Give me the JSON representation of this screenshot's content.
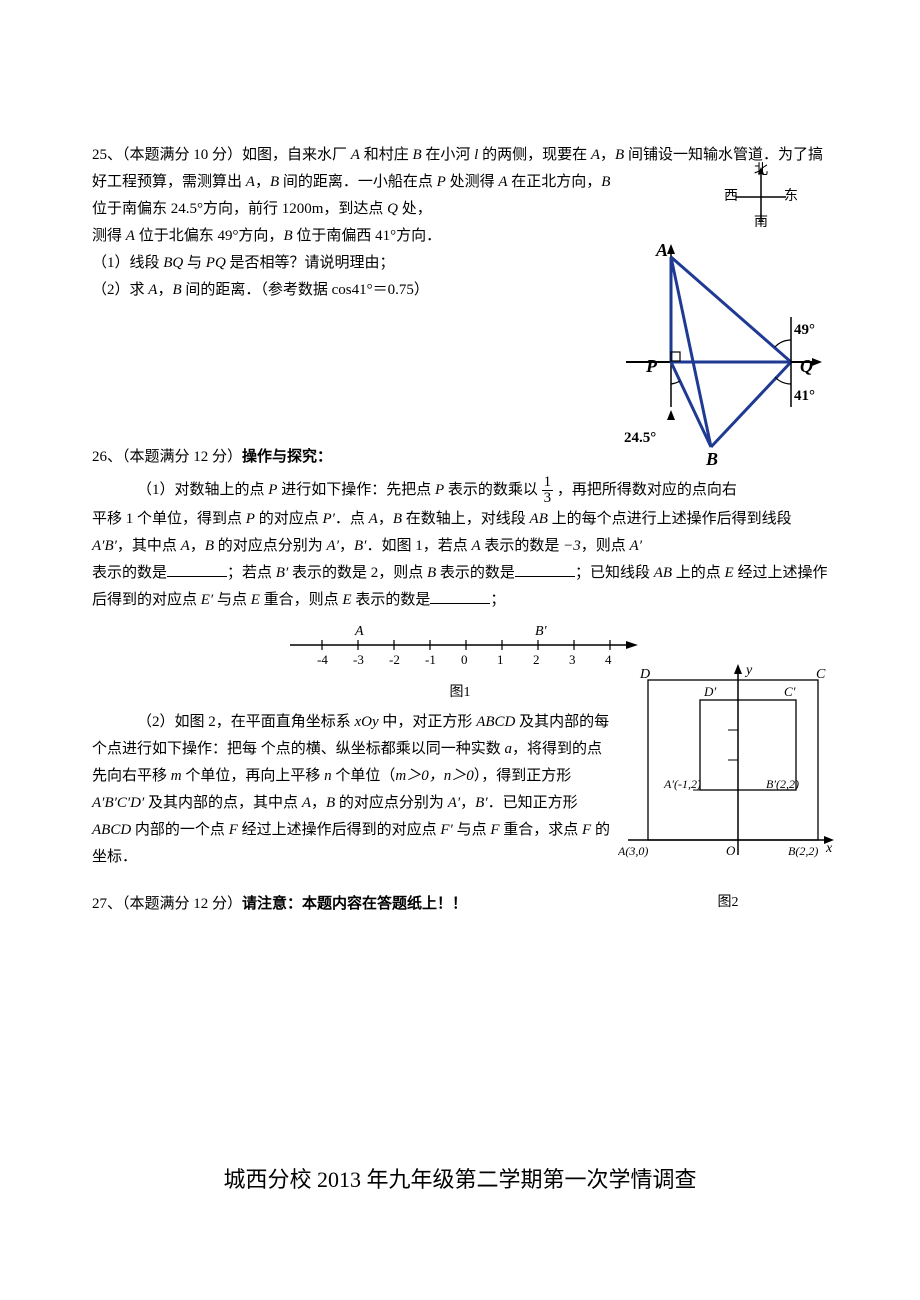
{
  "q25": {
    "number": "25、",
    "score": "（本题满分 10 分）",
    "text1": "如图，自来水厂",
    "A": "A",
    "text2": "和村庄",
    "B": "B",
    "text3": "在小河",
    "l": "l",
    "text4": "的两侧，现要在",
    "text5": "，",
    "text6": "间铺设一知输水管道．为了搞好工程预算，需测算出",
    "text7": "，",
    "text8": "间的距离．一小船在点",
    "P": "P",
    "text9": "处测得",
    "text10": "在正北方向，",
    "text11": "位于南偏东 24.5°方向，前行 1200m，到达点",
    "Q": "Q",
    "text12": "处，",
    "line2a": "测得",
    "line2b": "位于北偏东 49°方向，",
    "line2c": "位于南偏西 41°方向．",
    "sub1": "（1）线段",
    "BQ": "BQ",
    "sub1b": "与",
    "PQ": "PQ",
    "sub1c": "是否相等？请说明理由；",
    "sub2": "（2）求",
    "sub2b": "，",
    "sub2c": "间的距离．（参考数据 cos41°＝0.75）",
    "compass": {
      "n": "北",
      "s": "南",
      "e": "东",
      "w": "西"
    },
    "diagram": {
      "angle49": "49°",
      "angle41": "41°",
      "angle245": "24.5°",
      "labelA": "A",
      "labelB": "B",
      "labelP": "P",
      "labelQ": "Q",
      "line_color": "#1f3a93",
      "line_width": 2.5,
      "axis_color": "#000000"
    }
  },
  "q26": {
    "number": "26、",
    "score": "（本题满分 12 分）",
    "title": "操作与探究：",
    "p1a": "（1）对数轴上的点",
    "P": "P",
    "p1b": "进行如下操作：先把点",
    "p1c": "表示的数乘以",
    "frac_num": "1",
    "frac_den": "3",
    "p1d": "，再把所得数对应的点向右",
    "p2": "平移 1 个单位，得到点",
    "p2b": "的对应点",
    "Pprime": "P′",
    "p2c": "．点",
    "A": "A",
    "comma": "，",
    "B": "B",
    "p2d": "在数轴上，对线段",
    "AB": "AB",
    "p2e": "上的每个点进行上述操作后得到线段",
    "ABprime": "A′B′",
    "p2f": "，其中点",
    "p2g": "的对应点分别为",
    "Aprime": "A′",
    "Bprime": "B′",
    "p2h": "．如图 1，若点",
    "p2i": "表示的数是",
    "neg3": "−3",
    "p2j": "，则点",
    "p3a": "表示的数是",
    "p3b": "；若点",
    "p3c": "表示的数是 2，则点",
    "p3d": "表示的数是",
    "p3e": "；已知线段",
    "p3f": "上的点",
    "E": "E",
    "p4a": "经过上述操作后得到的对应点",
    "Eprime": "E′",
    "p4b": "与点",
    "p4c": "重合，则点",
    "p4d": "表示的数是",
    "p4e": "；",
    "numberline": {
      "ticks": [
        -4,
        -3,
        -2,
        -1,
        0,
        1,
        2,
        3,
        4
      ],
      "labelA": "A",
      "labelB": "B′",
      "posA": -3,
      "posB": 2,
      "caption": "图1"
    },
    "p5a": "（2）如图 2，在平面直角坐标系",
    "xOy": "xOy",
    "p5b": "中，对正方形",
    "ABCD": "ABCD",
    "p5c": "及其内部的每个点进行如下操作：把每 个点的横、纵坐标都乘以同一种实数",
    "a": "a",
    "p5d": "，将得到的点先向右平移",
    "m": "m",
    "p5e": "个单位，再向上平移",
    "n": "n",
    "p5f": "个单位（",
    "cond": "m＞0，n＞0",
    "p5g": "），得到正方形",
    "ABCDprime": "A′B′C′D′",
    "p5h": "及其内部的点，其中点",
    "p5i": "的对应点分别为",
    "p5j": "．已知正方形",
    "p5k": "内部的一个点",
    "F": "F",
    "p5l": "经过上述操作后得到的对应点",
    "Fprime": "F′",
    "p5m": "与点",
    "p5n": "重合，求点",
    "p5o": "的坐标．",
    "fig2": {
      "caption": "图2",
      "labels": {
        "D": "D",
        "C": "C",
        "Dp": "D′",
        "Cp": "C′",
        "Ap": "A′(-1,2)",
        "Bp": "B′(2,2)",
        "A3": "A(3,0)",
        "O": "O",
        "B22": "B(2,2)",
        "x": "x",
        "y": "y"
      }
    }
  },
  "q27": {
    "number": "27、",
    "score": "（本题满分 12 分）",
    "note": "请注意：本题内容在答题纸上！！"
  },
  "footer": "城西分校 2013 年九年级第二学期第一次学情调查"
}
